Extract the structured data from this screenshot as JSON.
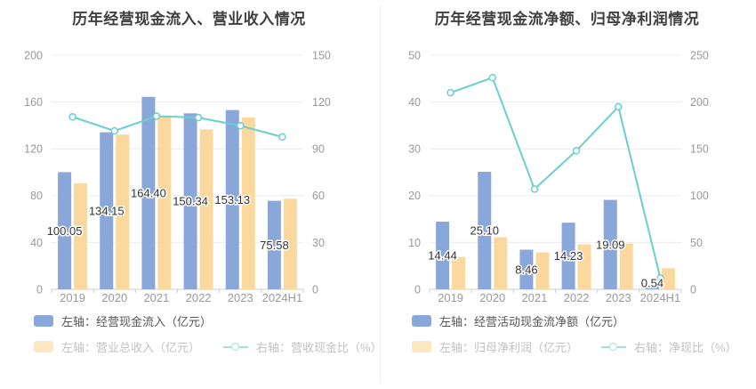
{
  "page": {
    "background": "#ffffff"
  },
  "colors": {
    "bar_blue": "#8aa7da",
    "bar_orange": "#fbd99e",
    "line_teal": "#6bcfcd",
    "grid": "#ececec",
    "axis": "#cccccc",
    "tick_label": "#999999",
    "data_label": "#333333",
    "title": "#404040",
    "legend_text_primary": "#555555",
    "legend_text_secondary": "#9b9b9b",
    "divider": "#ededed"
  },
  "chart_data": [
    {
      "type": "bar",
      "title": "历年经营现金流入、营业收入情况",
      "categories": [
        "2019",
        "2020",
        "2021",
        "2022",
        "2023",
        "2024H1"
      ],
      "left_axis": {
        "min": 0,
        "max": 200,
        "ticks": [
          0,
          40,
          80,
          120,
          160,
          200
        ]
      },
      "right_axis": {
        "min": 0,
        "max": 150,
        "ticks": [
          0,
          30,
          60,
          90,
          120,
          150
        ]
      },
      "grid": true,
      "legend_position": "bottom",
      "series": [
        {
          "key": "operating-cash-inflow",
          "name": "左轴：经营现金流入（亿元）",
          "type": "bar",
          "axis": "left",
          "color": "bar_blue",
          "values": [
            100.05,
            134.15,
            164.4,
            150.34,
            153.13,
            75.58
          ],
          "labels": [
            "100.05",
            "134.15",
            "164.40",
            "150.34",
            "153.13",
            "75.58"
          ]
        },
        {
          "key": "total-revenue",
          "name": "左轴：营业总收入（亿元）",
          "type": "bar",
          "axis": "left",
          "color": "bar_orange",
          "values": [
            90.5,
            132.2,
            148.2,
            136.7,
            146.8,
            77.4
          ]
        },
        {
          "key": "revenue-cash-ratio",
          "name": "右轴：营收现金比（%）",
          "type": "line",
          "axis": "right",
          "color": "line_teal",
          "values": [
            110.5,
            101.5,
            110.9,
            110.0,
            104.8,
            97.6
          ]
        }
      ]
    },
    {
      "type": "bar",
      "title": "历年经营现金流净额、归母净利润情况",
      "categories": [
        "2019",
        "2020",
        "2021",
        "2022",
        "2023",
        "2024H1"
      ],
      "left_axis": {
        "min": 0,
        "max": 50,
        "ticks": [
          0,
          10,
          20,
          30,
          40,
          50
        ]
      },
      "right_axis": {
        "min": 0,
        "max": 250,
        "ticks": [
          0,
          50,
          100,
          150,
          200,
          250
        ]
      },
      "grid": true,
      "legend_position": "bottom",
      "series": [
        {
          "key": "net-operating-cashflow",
          "name": "左轴：经营活动现金流净额（亿元）",
          "type": "bar",
          "axis": "left",
          "color": "bar_blue",
          "values": [
            14.44,
            25.1,
            8.46,
            14.23,
            19.09,
            0.54
          ],
          "labels": [
            "14.44",
            "25.10",
            "8.46",
            "14.23",
            "19.09",
            "0.54"
          ]
        },
        {
          "key": "net-profit",
          "name": "左轴：归母净利润（亿元）",
          "type": "bar",
          "axis": "left",
          "color": "bar_orange",
          "values": [
            6.9,
            11.1,
            7.9,
            9.6,
            9.8,
            4.5
          ]
        },
        {
          "key": "net-cash-ratio",
          "name": "右轴：净现比（%）",
          "type": "line",
          "axis": "right",
          "color": "line_teal",
          "values": [
            210,
            226,
            107,
            148,
            195,
            12
          ]
        }
      ]
    }
  ]
}
